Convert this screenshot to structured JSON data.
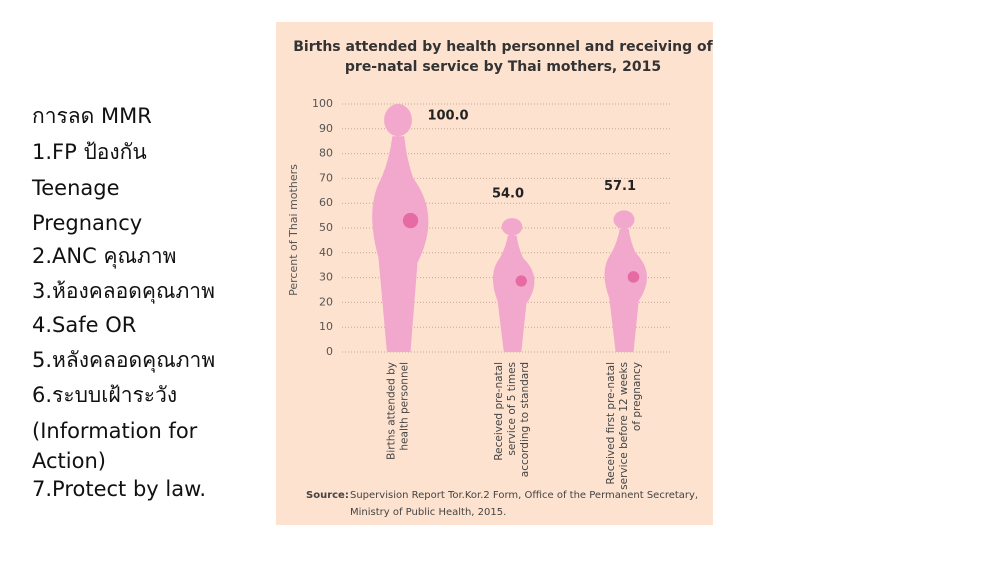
{
  "slide_text": [
    "การลด MMR",
    "1.FP ป้องกัน",
    "Teenage",
    "Pregnancy",
    "2.ANC คุณภาพ",
    "3.ห้องคลอดคุณภาพ",
    "4.Safe OR",
    "5.หลังคลอดคุณภาพ",
    "6.ระบบเฝ้าระวัง",
    "(Information for",
    "Action)",
    "7.Protect by law."
  ],
  "chart_data": {
    "type": "bar",
    "title": "Births attended by health personnel and receiving of pre-natal service by Thai mothers, 2015",
    "y_label": "Percent of Thai mothers",
    "categories": [
      "Births attended by health personnel",
      "Received pre-natal service of 5 times according to standard",
      "Received first pre-natal service before 12 weeks of pregnancy"
    ],
    "values": [
      100,
      54,
      57.1
    ],
    "value_labels": [
      "100.0",
      "54.0",
      "57.1"
    ],
    "color": "#f2a7cd",
    "ylim": [
      0,
      100
    ],
    "yticks": [
      0,
      10,
      20,
      30,
      40,
      50,
      60,
      70,
      80,
      90,
      100
    ],
    "grid": true,
    "source_label": "Source:",
    "source": "Supervision Report Tor.Kor.2 Form, Office of the Permanent Secretary, Ministry of Public Health, 2015."
  }
}
